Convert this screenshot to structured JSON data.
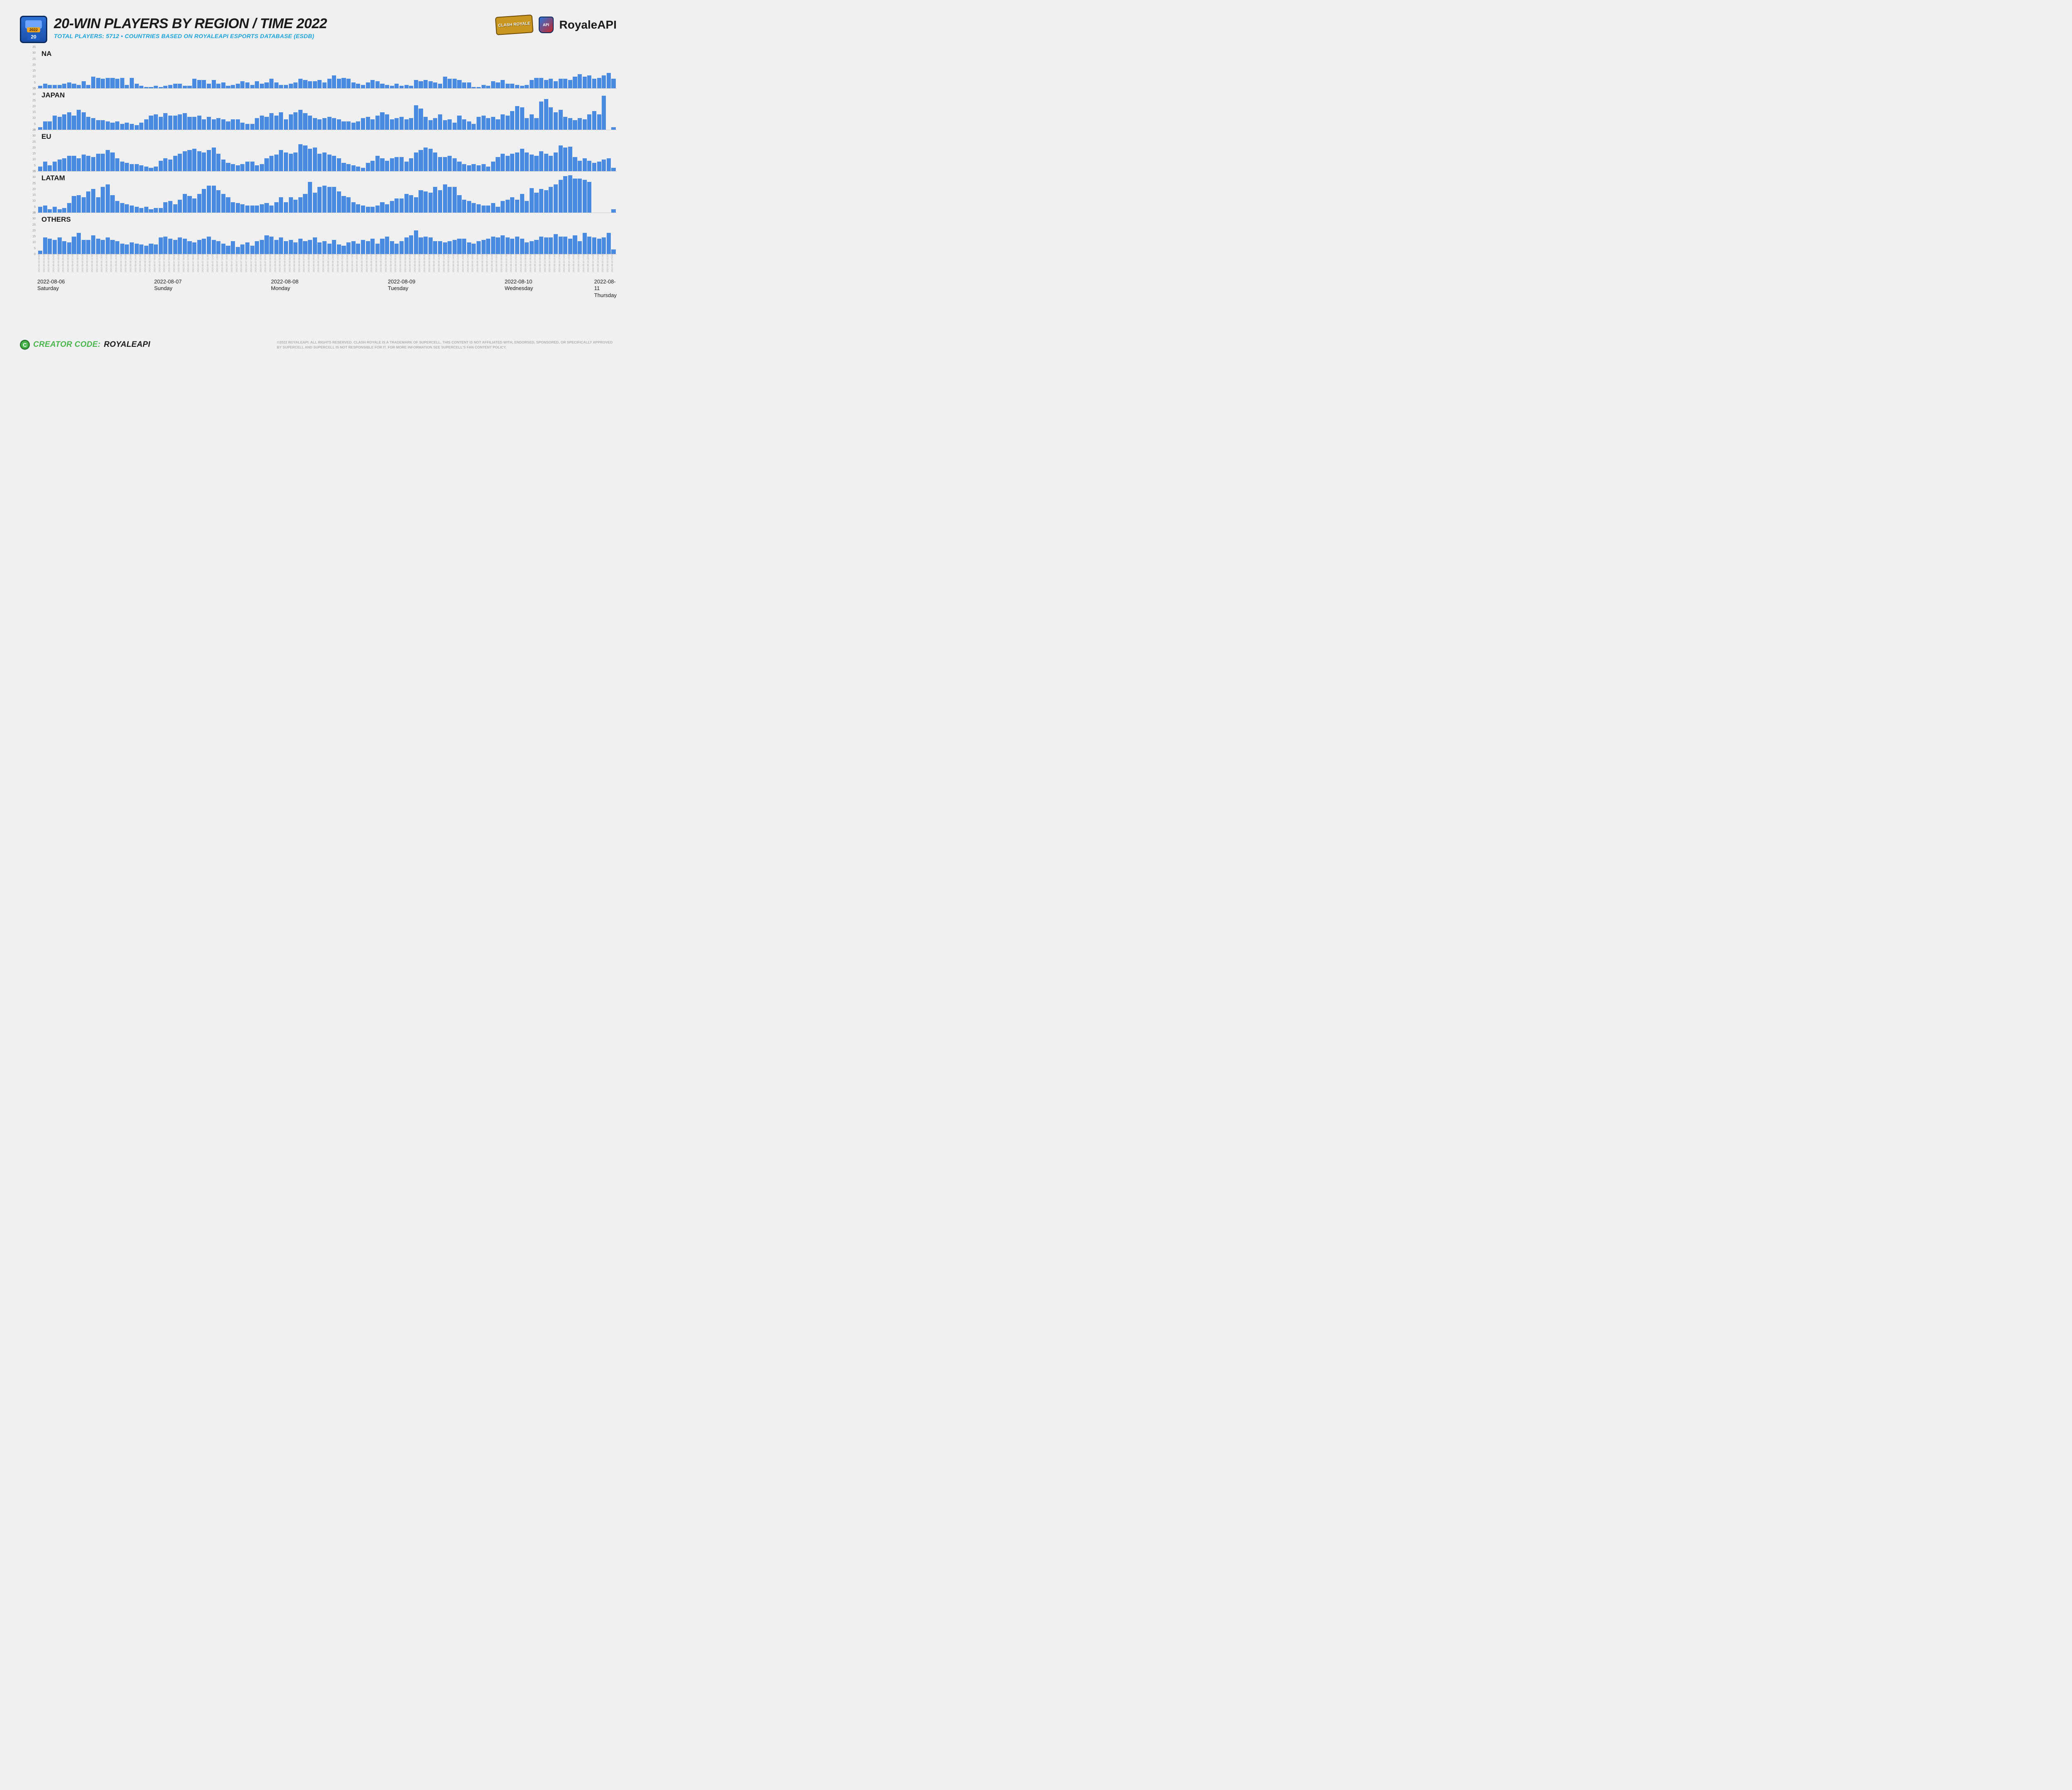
{
  "header": {
    "title": "20-WIN PLAYERS BY REGION / TIME 2022",
    "subtitle": "TOTAL PLAYERS: 5712 • COUNTRIES BASED ON ROYALEAPI ESPORTS DATABASE (ESDB)",
    "badge_year": "2022",
    "badge_num": "20",
    "logo_cr_text": "CLASH ROYALE",
    "logo_api_shield": "API",
    "logo_api_text": "RoyaleAPI"
  },
  "chart": {
    "type": "bar",
    "bar_color": "#4a8ae0",
    "background_color": "#f0f0f2",
    "ylim": [
      0,
      35
    ],
    "yticks": [
      0,
      5,
      10,
      15,
      20,
      25,
      30,
      35
    ],
    "region_label_fontsize": 17,
    "regions": [
      {
        "label": "NA",
        "values": [
          2,
          4,
          3,
          3,
          3,
          4,
          5,
          4,
          3,
          6,
          3,
          10,
          9,
          8,
          9,
          9,
          8,
          9,
          3,
          9,
          4,
          2,
          1,
          1,
          2,
          1,
          2,
          3,
          4,
          4,
          2,
          2,
          8,
          7,
          7,
          4,
          7,
          4,
          5,
          2,
          3,
          4,
          6,
          5,
          3,
          6,
          4,
          5,
          8,
          5,
          3,
          3,
          4,
          5,
          8,
          7,
          6,
          6,
          7,
          5,
          8,
          11,
          8,
          9,
          8,
          5,
          4,
          3,
          5,
          7,
          6,
          4,
          3,
          2,
          4,
          2,
          3,
          2,
          7,
          6,
          7,
          6,
          5,
          4,
          10,
          8,
          8,
          7,
          5,
          5,
          1,
          1,
          3,
          2,
          6,
          5,
          7,
          4,
          4,
          3,
          2,
          3,
          7,
          9,
          9,
          7,
          8,
          6,
          8,
          8,
          7,
          10,
          12,
          10,
          11,
          8,
          9,
          11,
          13,
          8
        ]
      },
      {
        "label": "JAPAN",
        "values": [
          2,
          7,
          7,
          12,
          11,
          13,
          15,
          12,
          17,
          15,
          11,
          10,
          8,
          8,
          7,
          6,
          7,
          5,
          6,
          5,
          4,
          6,
          9,
          12,
          13,
          11,
          14,
          12,
          12,
          13,
          14,
          11,
          11,
          12,
          9,
          11,
          9,
          10,
          9,
          7,
          9,
          9,
          6,
          5,
          5,
          10,
          12,
          11,
          14,
          12,
          15,
          9,
          13,
          15,
          17,
          14,
          12,
          10,
          9,
          10,
          11,
          10,
          9,
          7,
          7,
          6,
          7,
          10,
          11,
          9,
          12,
          15,
          13,
          9,
          10,
          11,
          9,
          10,
          21,
          18,
          11,
          8,
          10,
          13,
          8,
          9,
          6,
          12,
          9,
          7,
          5,
          11,
          12,
          10,
          11,
          9,
          13,
          12,
          16,
          20,
          19,
          10,
          13,
          10,
          24,
          26,
          19,
          15,
          17,
          11,
          10,
          8,
          10,
          9,
          13,
          16,
          13,
          29,
          0,
          2
        ]
      },
      {
        "label": "EU",
        "values": [
          4,
          8,
          5,
          8,
          10,
          11,
          13,
          13,
          11,
          14,
          13,
          12,
          15,
          15,
          18,
          16,
          11,
          8,
          7,
          6,
          6,
          5,
          4,
          3,
          4,
          9,
          11,
          10,
          13,
          15,
          17,
          18,
          19,
          17,
          16,
          18,
          20,
          15,
          10,
          7,
          6,
          5,
          6,
          8,
          8,
          5,
          6,
          11,
          13,
          14,
          18,
          16,
          15,
          16,
          23,
          22,
          19,
          20,
          15,
          16,
          14,
          13,
          11,
          7,
          6,
          5,
          4,
          3,
          7,
          9,
          13,
          11,
          9,
          11,
          12,
          12,
          8,
          11,
          16,
          18,
          20,
          19,
          16,
          12,
          12,
          13,
          11,
          8,
          6,
          5,
          6,
          5,
          6,
          4,
          8,
          12,
          15,
          13,
          15,
          16,
          19,
          16,
          14,
          13,
          17,
          15,
          13,
          16,
          22,
          20,
          21,
          12,
          9,
          11,
          9,
          7,
          8,
          10,
          11,
          3
        ]
      },
      {
        "label": "LATAM",
        "values": [
          5,
          6,
          3,
          5,
          3,
          4,
          8,
          14,
          15,
          13,
          18,
          20,
          13,
          22,
          24,
          15,
          10,
          8,
          7,
          6,
          5,
          4,
          5,
          3,
          4,
          4,
          9,
          10,
          7,
          11,
          16,
          14,
          12,
          16,
          20,
          23,
          23,
          19,
          16,
          13,
          9,
          8,
          7,
          6,
          6,
          6,
          7,
          8,
          6,
          9,
          13,
          9,
          13,
          11,
          13,
          16,
          26,
          17,
          22,
          23,
          22,
          22,
          18,
          14,
          13,
          9,
          7,
          6,
          5,
          5,
          6,
          9,
          7,
          10,
          12,
          12,
          16,
          15,
          13,
          19,
          18,
          17,
          22,
          19,
          24,
          22,
          22,
          15,
          11,
          10,
          8,
          7,
          6,
          6,
          8,
          5,
          10,
          11,
          13,
          11,
          16,
          10,
          21,
          17,
          20,
          19,
          22,
          24,
          28,
          31,
          32,
          29,
          29,
          28,
          26,
          0,
          0,
          0,
          0,
          3
        ]
      },
      {
        "label": "OTHERS",
        "values": [
          3,
          14,
          13,
          12,
          14,
          11,
          10,
          15,
          18,
          12,
          12,
          16,
          13,
          12,
          14,
          12,
          11,
          9,
          8,
          10,
          9,
          8,
          7,
          9,
          8,
          14,
          15,
          13,
          12,
          14,
          13,
          11,
          10,
          12,
          13,
          15,
          12,
          11,
          9,
          7,
          11,
          6,
          8,
          10,
          7,
          11,
          12,
          16,
          15,
          12,
          14,
          11,
          12,
          10,
          13,
          11,
          12,
          14,
          10,
          11,
          9,
          12,
          8,
          7,
          10,
          11,
          9,
          12,
          11,
          13,
          9,
          13,
          15,
          11,
          9,
          11,
          14,
          16,
          20,
          14,
          15,
          14,
          11,
          11,
          10,
          11,
          12,
          13,
          13,
          10,
          9,
          11,
          12,
          13,
          15,
          14,
          16,
          14,
          13,
          15,
          13,
          10,
          11,
          12,
          15,
          14,
          14,
          17,
          15,
          15,
          13,
          16,
          11,
          18,
          15,
          14,
          13,
          14,
          18,
          4
        ]
      }
    ],
    "x_start": "2022-08-06 00:00",
    "x_hours": 120,
    "days": [
      {
        "date": "2022-08-06",
        "day": "Saturday",
        "hour": 0
      },
      {
        "date": "2022-08-07",
        "day": "Sunday",
        "hour": 24
      },
      {
        "date": "2022-08-08",
        "day": "Monday",
        "hour": 48
      },
      {
        "date": "2022-08-09",
        "day": "Tuesday",
        "hour": 72
      },
      {
        "date": "2022-08-10",
        "day": "Wednesday",
        "hour": 96
      },
      {
        "date": "2022-08-11",
        "day": "Thursday",
        "hour": 119
      }
    ]
  },
  "footer": {
    "creator_code_label": "CREATOR CODE:",
    "creator_name": "ROYALEAPI",
    "c_badge": "C",
    "copyright": "©2022 ROYALEAPI. ALL RIGHTS RESERVED. CLASH ROYALE IS A TRADEMARK OF SUPERCELL. THIS CONTENT IS NOT AFFILIATED WITH, ENDORSED, SPONSORED, OR SPECIFICALLY APPROVED BY SUPERCELL AND SUPERCELL IS NOT RESPONSIBLE FOR IT. FOR MORE INFORMATION SEE SUPERCELL'S FAN CONTENT POLICY."
  }
}
